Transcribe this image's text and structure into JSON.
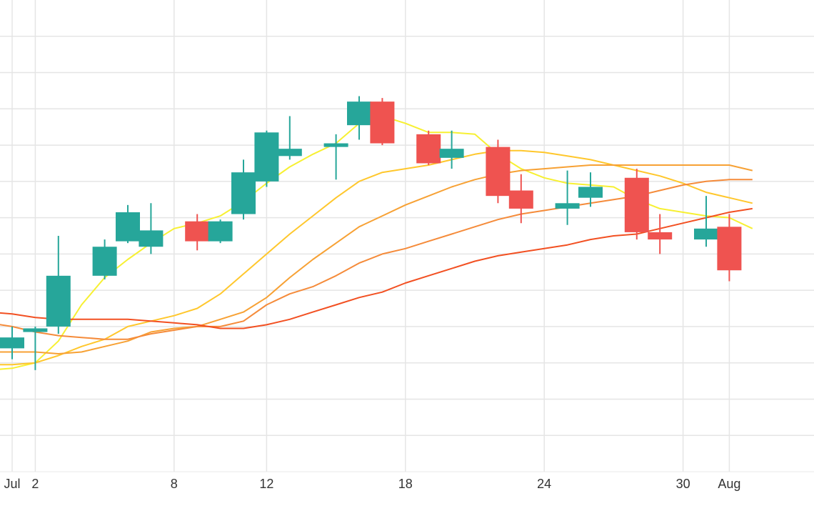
{
  "chart_data": {
    "type": "candlestick",
    "title": "",
    "xlabel": "",
    "ylabel": "",
    "x_axis": {
      "type": "date",
      "start": "2018-06-30",
      "end": "2018-08-03",
      "ticks": [
        {
          "date": "2018-07-01",
          "label": "Jul"
        },
        {
          "date": "2018-07-02",
          "label": "2"
        },
        {
          "date": "2018-07-08",
          "label": "8"
        },
        {
          "date": "2018-07-12",
          "label": "12"
        },
        {
          "date": "2018-07-18",
          "label": "18"
        },
        {
          "date": "2018-07-24",
          "label": "24"
        },
        {
          "date": "2018-07-30",
          "label": "30"
        },
        {
          "date": "2018-08-01",
          "label": "Aug"
        }
      ]
    },
    "y_axis": {
      "range": [
        2,
        15
      ],
      "gridlines": [
        3,
        4,
        5,
        6,
        7,
        8,
        9,
        10,
        11,
        12,
        13,
        14
      ],
      "tick_labels_visible": false
    },
    "grid": true,
    "colors": {
      "increasing": "#26a69a",
      "decreasing": "#ef5350",
      "grid": "#e5e5e5"
    },
    "candles": [
      {
        "date": "2018-07-01",
        "open": 5.4,
        "high": 6.0,
        "low": 5.1,
        "close": 5.7
      },
      {
        "date": "2018-07-02",
        "open": 5.85,
        "high": 6.0,
        "low": 4.8,
        "close": 5.95
      },
      {
        "date": "2018-07-03",
        "open": 6.0,
        "high": 8.5,
        "low": 5.8,
        "close": 7.4
      },
      {
        "date": "2018-07-05",
        "open": 7.4,
        "high": 8.4,
        "low": 7.3,
        "close": 8.2
      },
      {
        "date": "2018-07-06",
        "open": 8.35,
        "high": 9.35,
        "low": 8.3,
        "close": 9.15
      },
      {
        "date": "2018-07-07",
        "open": 8.2,
        "high": 9.4,
        "low": 8.0,
        "close": 8.65
      },
      {
        "date": "2018-07-09",
        "open": 8.9,
        "high": 9.1,
        "low": 8.1,
        "close": 8.35
      },
      {
        "date": "2018-07-10",
        "open": 8.35,
        "high": 8.95,
        "low": 8.3,
        "close": 8.9
      },
      {
        "date": "2018-07-11",
        "open": 9.1,
        "high": 10.6,
        "low": 8.95,
        "close": 10.25
      },
      {
        "date": "2018-07-12",
        "open": 10.0,
        "high": 11.4,
        "low": 9.85,
        "close": 11.35
      },
      {
        "date": "2018-07-13",
        "open": 10.7,
        "high": 11.8,
        "low": 10.6,
        "close": 10.9
      },
      {
        "date": "2018-07-15",
        "open": 10.95,
        "high": 11.3,
        "low": 10.05,
        "close": 11.05
      },
      {
        "date": "2018-07-16",
        "open": 11.55,
        "high": 12.35,
        "low": 11.15,
        "close": 12.2
      },
      {
        "date": "2018-07-17",
        "open": 12.2,
        "high": 12.3,
        "low": 11.0,
        "close": 11.05
      },
      {
        "date": "2018-07-19",
        "open": 11.3,
        "high": 11.4,
        "low": 10.45,
        "close": 10.5
      },
      {
        "date": "2018-07-20",
        "open": 10.65,
        "high": 11.4,
        "low": 10.35,
        "close": 10.9
      },
      {
        "date": "2018-07-22",
        "open": 10.95,
        "high": 11.15,
        "low": 9.4,
        "close": 9.6
      },
      {
        "date": "2018-07-23",
        "open": 9.75,
        "high": 10.2,
        "low": 8.85,
        "close": 9.25
      },
      {
        "date": "2018-07-25",
        "open": 9.25,
        "high": 10.3,
        "low": 8.8,
        "close": 9.4
      },
      {
        "date": "2018-07-26",
        "open": 9.55,
        "high": 10.25,
        "low": 9.3,
        "close": 9.85
      },
      {
        "date": "2018-07-28",
        "open": 10.1,
        "high": 10.35,
        "low": 8.4,
        "close": 8.6
      },
      {
        "date": "2018-07-29",
        "open": 8.6,
        "high": 9.1,
        "low": 8.0,
        "close": 8.4
      },
      {
        "date": "2018-07-31",
        "open": 8.4,
        "high": 9.6,
        "low": 8.2,
        "close": 8.7
      },
      {
        "date": "2018-08-01",
        "open": 8.75,
        "high": 9.1,
        "low": 7.25,
        "close": 7.55
      }
    ],
    "series": [
      {
        "color": "#f7f032",
        "type": "line",
        "points": [
          {
            "date": "2018-06-30",
            "y": 4.8
          },
          {
            "date": "2018-07-01",
            "y": 4.85
          },
          {
            "date": "2018-07-02",
            "y": 5.0
          },
          {
            "date": "2018-07-03",
            "y": 5.6
          },
          {
            "date": "2018-07-04",
            "y": 6.6
          },
          {
            "date": "2018-07-05",
            "y": 7.35
          },
          {
            "date": "2018-07-06",
            "y": 7.85
          },
          {
            "date": "2018-07-07",
            "y": 8.3
          },
          {
            "date": "2018-07-08",
            "y": 8.7
          },
          {
            "date": "2018-07-09",
            "y": 8.85
          },
          {
            "date": "2018-07-10",
            "y": 9.05
          },
          {
            "date": "2018-07-11",
            "y": 9.45
          },
          {
            "date": "2018-07-12",
            "y": 9.95
          },
          {
            "date": "2018-07-13",
            "y": 10.4
          },
          {
            "date": "2018-07-14",
            "y": 10.75
          },
          {
            "date": "2018-07-15",
            "y": 11.05
          },
          {
            "date": "2018-07-16",
            "y": 11.6
          },
          {
            "date": "2018-07-17",
            "y": 11.8
          },
          {
            "date": "2018-07-18",
            "y": 11.6
          },
          {
            "date": "2018-07-19",
            "y": 11.35
          },
          {
            "date": "2018-07-20",
            "y": 11.35
          },
          {
            "date": "2018-07-21",
            "y": 11.3
          },
          {
            "date": "2018-07-22",
            "y": 10.75
          },
          {
            "date": "2018-07-23",
            "y": 10.35
          },
          {
            "date": "2018-07-24",
            "y": 10.1
          },
          {
            "date": "2018-07-25",
            "y": 9.95
          },
          {
            "date": "2018-07-26",
            "y": 9.9
          },
          {
            "date": "2018-07-27",
            "y": 9.85
          },
          {
            "date": "2018-07-28",
            "y": 9.5
          },
          {
            "date": "2018-07-29",
            "y": 9.25
          },
          {
            "date": "2018-07-30",
            "y": 9.15
          },
          {
            "date": "2018-07-31",
            "y": 9.05
          },
          {
            "date": "2018-08-01",
            "y": 9.0
          },
          {
            "date": "2018-08-02",
            "y": 8.7
          }
        ]
      },
      {
        "color": "#ffc72c",
        "type": "line",
        "points": [
          {
            "date": "2018-06-30",
            "y": 4.95
          },
          {
            "date": "2018-07-01",
            "y": 4.95
          },
          {
            "date": "2018-07-02",
            "y": 5.0
          },
          {
            "date": "2018-07-03",
            "y": 5.2
          },
          {
            "date": "2018-07-04",
            "y": 5.45
          },
          {
            "date": "2018-07-05",
            "y": 5.65
          },
          {
            "date": "2018-07-06",
            "y": 6.0
          },
          {
            "date": "2018-07-07",
            "y": 6.15
          },
          {
            "date": "2018-07-08",
            "y": 6.3
          },
          {
            "date": "2018-07-09",
            "y": 6.5
          },
          {
            "date": "2018-07-10",
            "y": 6.9
          },
          {
            "date": "2018-07-11",
            "y": 7.45
          },
          {
            "date": "2018-07-12",
            "y": 8.0
          },
          {
            "date": "2018-07-13",
            "y": 8.55
          },
          {
            "date": "2018-07-14",
            "y": 9.05
          },
          {
            "date": "2018-07-15",
            "y": 9.55
          },
          {
            "date": "2018-07-16",
            "y": 10.0
          },
          {
            "date": "2018-07-17",
            "y": 10.25
          },
          {
            "date": "2018-07-18",
            "y": 10.35
          },
          {
            "date": "2018-07-19",
            "y": 10.45
          },
          {
            "date": "2018-07-20",
            "y": 10.6
          },
          {
            "date": "2018-07-21",
            "y": 10.75
          },
          {
            "date": "2018-07-22",
            "y": 10.85
          },
          {
            "date": "2018-07-23",
            "y": 10.85
          },
          {
            "date": "2018-07-24",
            "y": 10.8
          },
          {
            "date": "2018-07-25",
            "y": 10.7
          },
          {
            "date": "2018-07-26",
            "y": 10.6
          },
          {
            "date": "2018-07-27",
            "y": 10.45
          },
          {
            "date": "2018-07-28",
            "y": 10.3
          },
          {
            "date": "2018-07-29",
            "y": 10.15
          },
          {
            "date": "2018-07-30",
            "y": 9.95
          },
          {
            "date": "2018-07-31",
            "y": 9.7
          },
          {
            "date": "2018-08-01",
            "y": 9.55
          },
          {
            "date": "2018-08-02",
            "y": 9.4
          }
        ]
      },
      {
        "color": "#f7a134",
        "type": "line",
        "points": [
          {
            "date": "2018-06-30",
            "y": 5.3
          },
          {
            "date": "2018-07-01",
            "y": 5.3
          },
          {
            "date": "2018-07-02",
            "y": 5.3
          },
          {
            "date": "2018-07-03",
            "y": 5.25
          },
          {
            "date": "2018-07-04",
            "y": 5.3
          },
          {
            "date": "2018-07-05",
            "y": 5.45
          },
          {
            "date": "2018-07-06",
            "y": 5.6
          },
          {
            "date": "2018-07-07",
            "y": 5.85
          },
          {
            "date": "2018-07-08",
            "y": 5.95
          },
          {
            "date": "2018-07-09",
            "y": 6.0
          },
          {
            "date": "2018-07-10",
            "y": 6.2
          },
          {
            "date": "2018-07-11",
            "y": 6.4
          },
          {
            "date": "2018-07-12",
            "y": 6.8
          },
          {
            "date": "2018-07-13",
            "y": 7.35
          },
          {
            "date": "2018-07-14",
            "y": 7.85
          },
          {
            "date": "2018-07-15",
            "y": 8.3
          },
          {
            "date": "2018-07-16",
            "y": 8.75
          },
          {
            "date": "2018-07-17",
            "y": 9.05
          },
          {
            "date": "2018-07-18",
            "y": 9.35
          },
          {
            "date": "2018-07-19",
            "y": 9.6
          },
          {
            "date": "2018-07-20",
            "y": 9.85
          },
          {
            "date": "2018-07-21",
            "y": 10.05
          },
          {
            "date": "2018-07-22",
            "y": 10.2
          },
          {
            "date": "2018-07-23",
            "y": 10.3
          },
          {
            "date": "2018-07-24",
            "y": 10.35
          },
          {
            "date": "2018-07-25",
            "y": 10.4
          },
          {
            "date": "2018-07-26",
            "y": 10.45
          },
          {
            "date": "2018-07-27",
            "y": 10.45
          },
          {
            "date": "2018-07-28",
            "y": 10.45
          },
          {
            "date": "2018-07-29",
            "y": 10.45
          },
          {
            "date": "2018-07-30",
            "y": 10.45
          },
          {
            "date": "2018-07-31",
            "y": 10.45
          },
          {
            "date": "2018-08-01",
            "y": 10.45
          },
          {
            "date": "2018-08-02",
            "y": 10.3
          }
        ]
      },
      {
        "color": "#f58b3a",
        "type": "line",
        "points": [
          {
            "date": "2018-06-30",
            "y": 6.1
          },
          {
            "date": "2018-07-01",
            "y": 6.0
          },
          {
            "date": "2018-07-02",
            "y": 5.85
          },
          {
            "date": "2018-07-03",
            "y": 5.75
          },
          {
            "date": "2018-07-04",
            "y": 5.7
          },
          {
            "date": "2018-07-05",
            "y": 5.65
          },
          {
            "date": "2018-07-06",
            "y": 5.65
          },
          {
            "date": "2018-07-07",
            "y": 5.8
          },
          {
            "date": "2018-07-08",
            "y": 5.9
          },
          {
            "date": "2018-07-09",
            "y": 6.0
          },
          {
            "date": "2018-07-10",
            "y": 6.0
          },
          {
            "date": "2018-07-11",
            "y": 6.15
          },
          {
            "date": "2018-07-12",
            "y": 6.6
          },
          {
            "date": "2018-07-13",
            "y": 6.9
          },
          {
            "date": "2018-07-14",
            "y": 7.1
          },
          {
            "date": "2018-07-15",
            "y": 7.4
          },
          {
            "date": "2018-07-16",
            "y": 7.75
          },
          {
            "date": "2018-07-17",
            "y": 8.0
          },
          {
            "date": "2018-07-18",
            "y": 8.15
          },
          {
            "date": "2018-07-19",
            "y": 8.35
          },
          {
            "date": "2018-07-20",
            "y": 8.55
          },
          {
            "date": "2018-07-21",
            "y": 8.75
          },
          {
            "date": "2018-07-22",
            "y": 8.95
          },
          {
            "date": "2018-07-23",
            "y": 9.1
          },
          {
            "date": "2018-07-24",
            "y": 9.2
          },
          {
            "date": "2018-07-25",
            "y": 9.3
          },
          {
            "date": "2018-07-26",
            "y": 9.4
          },
          {
            "date": "2018-07-27",
            "y": 9.5
          },
          {
            "date": "2018-07-28",
            "y": 9.6
          },
          {
            "date": "2018-07-29",
            "y": 9.75
          },
          {
            "date": "2018-07-30",
            "y": 9.9
          },
          {
            "date": "2018-07-31",
            "y": 10.0
          },
          {
            "date": "2018-08-01",
            "y": 10.05
          },
          {
            "date": "2018-08-02",
            "y": 10.05
          }
        ]
      },
      {
        "color": "#f25022",
        "type": "line",
        "points": [
          {
            "date": "2018-06-30",
            "y": 6.4
          },
          {
            "date": "2018-07-01",
            "y": 6.35
          },
          {
            "date": "2018-07-02",
            "y": 6.25
          },
          {
            "date": "2018-07-03",
            "y": 6.2
          },
          {
            "date": "2018-07-04",
            "y": 6.2
          },
          {
            "date": "2018-07-05",
            "y": 6.2
          },
          {
            "date": "2018-07-06",
            "y": 6.2
          },
          {
            "date": "2018-07-07",
            "y": 6.15
          },
          {
            "date": "2018-07-08",
            "y": 6.1
          },
          {
            "date": "2018-07-09",
            "y": 6.05
          },
          {
            "date": "2018-07-10",
            "y": 5.95
          },
          {
            "date": "2018-07-11",
            "y": 5.95
          },
          {
            "date": "2018-07-12",
            "y": 6.05
          },
          {
            "date": "2018-07-13",
            "y": 6.2
          },
          {
            "date": "2018-07-14",
            "y": 6.4
          },
          {
            "date": "2018-07-15",
            "y": 6.6
          },
          {
            "date": "2018-07-16",
            "y": 6.8
          },
          {
            "date": "2018-07-17",
            "y": 6.95
          },
          {
            "date": "2018-07-18",
            "y": 7.2
          },
          {
            "date": "2018-07-19",
            "y": 7.4
          },
          {
            "date": "2018-07-20",
            "y": 7.6
          },
          {
            "date": "2018-07-21",
            "y": 7.8
          },
          {
            "date": "2018-07-22",
            "y": 7.95
          },
          {
            "date": "2018-07-23",
            "y": 8.05
          },
          {
            "date": "2018-07-24",
            "y": 8.15
          },
          {
            "date": "2018-07-25",
            "y": 8.25
          },
          {
            "date": "2018-07-26",
            "y": 8.4
          },
          {
            "date": "2018-07-27",
            "y": 8.5
          },
          {
            "date": "2018-07-28",
            "y": 8.55
          },
          {
            "date": "2018-07-29",
            "y": 8.7
          },
          {
            "date": "2018-07-30",
            "y": 8.85
          },
          {
            "date": "2018-07-31",
            "y": 9.0
          },
          {
            "date": "2018-08-01",
            "y": 9.15
          },
          {
            "date": "2018-08-02",
            "y": 9.25
          }
        ]
      }
    ]
  }
}
